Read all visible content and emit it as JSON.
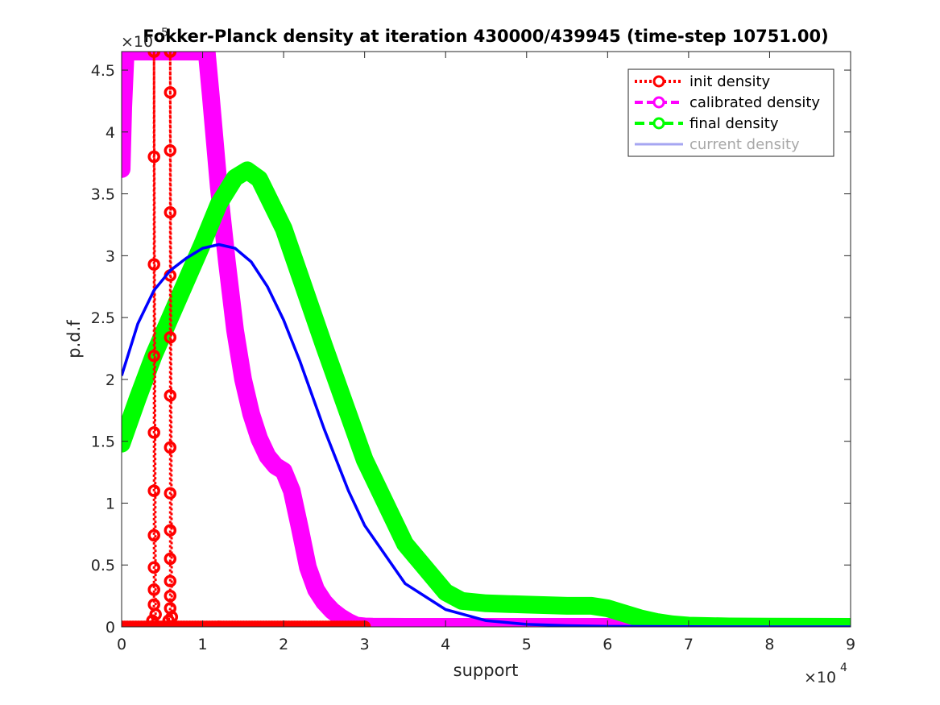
{
  "chart_data": {
    "type": "line",
    "title": "Fokker-Planck density at iteration 430000/439945 (time-step 10751.00)",
    "xlabel": "support",
    "ylabel": "p.d.f",
    "x_exponent_label": "×10",
    "x_exponent_power": "4",
    "y_exponent_label": "×10",
    "y_exponent_power": "-5",
    "xlim": [
      0,
      90000
    ],
    "ylim": [
      0,
      4.65
    ],
    "y_scale_multiplier": 1e-05,
    "x_ticks": [
      0,
      10000,
      20000,
      30000,
      40000,
      50000,
      60000,
      70000,
      80000,
      90000
    ],
    "x_tick_labels": [
      "0",
      "1",
      "2",
      "3",
      "4",
      "5",
      "6",
      "7",
      "8",
      "9"
    ],
    "y_ticks": [
      0,
      0.5,
      1,
      1.5,
      2,
      2.5,
      3,
      3.5,
      4,
      4.5
    ],
    "y_tick_labels": [
      "0",
      "0.5",
      "1",
      "1.5",
      "2",
      "2.5",
      "3",
      "3.5",
      "4",
      "4.5"
    ],
    "grid": false,
    "legend_position": "top-right",
    "series": [
      {
        "name": "init density",
        "color": "#ff0000",
        "style": "dotted-marker",
        "x": [
          0,
          3500,
          3800,
          4000,
          4000,
          4000,
          4000,
          4000,
          4000,
          4000,
          4000,
          4000,
          4000,
          4000,
          4000,
          4200,
          4600,
          5400,
          5800,
          6000,
          6000,
          6000,
          6000,
          6000,
          6000,
          6000,
          6000,
          6000,
          6000,
          6000,
          6000,
          6000,
          6000,
          6000,
          6000,
          6000,
          6200,
          6600,
          12000,
          20000,
          30000
        ],
        "y": [
          0,
          0,
          0.05,
          0.18,
          0.3,
          0.48,
          0.74,
          1.1,
          1.57,
          2.19,
          2.93,
          3.8,
          4.65,
          4.65,
          4.65,
          0.1,
          0,
          0,
          0.05,
          0.15,
          0.25,
          0.37,
          0.55,
          0.78,
          1.08,
          1.45,
          1.87,
          2.34,
          2.84,
          3.35,
          3.85,
          4.32,
          4.65,
          4.65,
          4.65,
          4.65,
          0.08,
          0,
          0,
          0,
          0
        ]
      },
      {
        "name": "calibrated density",
        "color": "#ff00ff",
        "style": "thick-band",
        "x": [
          0,
          200,
          500,
          1000,
          10500,
          11000,
          12000,
          13000,
          14000,
          15000,
          16000,
          17000,
          18000,
          19000,
          20000,
          21000,
          22000,
          23000,
          24000,
          25000,
          26000,
          27000,
          28000,
          29000,
          30000,
          31000,
          35000,
          40000,
          50000,
          60000,
          70000,
          80000,
          90000
        ],
        "y": [
          3.7,
          4.2,
          4.65,
          4.65,
          4.65,
          4.3,
          3.55,
          2.95,
          2.4,
          2.0,
          1.72,
          1.52,
          1.38,
          1.3,
          1.26,
          1.1,
          0.8,
          0.48,
          0.3,
          0.2,
          0.13,
          0.08,
          0.04,
          0.01,
          0.003,
          0.001,
          0,
          0,
          0,
          0,
          0,
          0,
          0
        ]
      },
      {
        "name": "final density",
        "color": "#00ff00",
        "style": "thick-band",
        "x": [
          0,
          2000,
          4000,
          6000,
          8000,
          10000,
          12000,
          14000,
          15500,
          17000,
          20000,
          25000,
          30000,
          35000,
          40000,
          42000,
          45000,
          50000,
          55000,
          58000,
          60000,
          62000,
          64000,
          66000,
          68000,
          70000,
          75000,
          80000,
          90000
        ],
        "y": [
          1.48,
          1.85,
          2.2,
          2.5,
          2.8,
          3.1,
          3.42,
          3.63,
          3.69,
          3.62,
          3.22,
          2.27,
          1.35,
          0.67,
          0.28,
          0.21,
          0.19,
          0.18,
          0.17,
          0.17,
          0.15,
          0.11,
          0.07,
          0.04,
          0.02,
          0.01,
          0.003,
          0.001,
          0
        ]
      },
      {
        "name": "current density",
        "color": "#0000ff",
        "legend_color": "#a6a6f2",
        "legend_dim": true,
        "style": "line",
        "x": [
          0,
          2000,
          4000,
          6000,
          8000,
          10000,
          12000,
          14000,
          16000,
          18000,
          20000,
          22000,
          25000,
          28000,
          30000,
          35000,
          40000,
          45000,
          50000,
          55000,
          60000,
          70000,
          80000,
          90000
        ],
        "y": [
          2.03,
          2.45,
          2.72,
          2.88,
          2.98,
          3.06,
          3.09,
          3.06,
          2.95,
          2.75,
          2.48,
          2.15,
          1.6,
          1.1,
          0.82,
          0.35,
          0.14,
          0.05,
          0.02,
          0.01,
          0.004,
          0.001,
          0,
          0
        ]
      }
    ]
  }
}
